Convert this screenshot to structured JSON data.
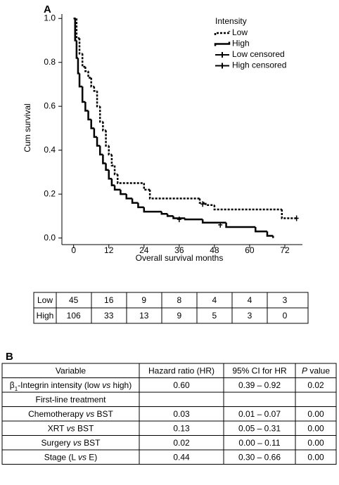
{
  "panel_labels": [
    "A",
    "B"
  ],
  "chart_data": {
    "type": "line",
    "step": true,
    "xlabel": "Overall survival months",
    "ylabel": "Cum survival",
    "xlim": [
      -4,
      78
    ],
    "ylim": [
      -0.03,
      1.02
    ],
    "xticks": [
      0,
      12,
      24,
      36,
      48,
      60,
      72
    ],
    "yticks": [
      {
        "value": 0,
        "label": "0.0"
      },
      {
        "value": 0.2,
        "label": "0.2"
      },
      {
        "value": 0.4,
        "label": "0.4"
      },
      {
        "value": 0.6,
        "label": "0.6"
      },
      {
        "value": 0.8,
        "label": "0.8"
      },
      {
        "value": 1,
        "label": "1.0"
      }
    ],
    "legend_title": "Intensity",
    "legend": "upper right",
    "series": [
      {
        "name": "Low",
        "color": "#000000",
        "line_style": "dotted",
        "x": [
          0,
          1,
          2,
          3,
          4,
          5,
          6,
          7,
          8,
          9,
          10,
          11,
          12,
          13,
          14,
          15,
          24,
          26,
          43,
          45,
          48,
          71,
          76
        ],
        "values": [
          1.0,
          0.91,
          0.84,
          0.78,
          0.76,
          0.73,
          0.69,
          0.67,
          0.6,
          0.53,
          0.49,
          0.42,
          0.38,
          0.33,
          0.29,
          0.25,
          0.22,
          0.18,
          0.16,
          0.15,
          0.13,
          0.09,
          0.09
        ]
      },
      {
        "name": "High",
        "color": "#000000",
        "line_style": "solid",
        "x": [
          0,
          0.5,
          1,
          1.5,
          2,
          3,
          4,
          5,
          6,
          7,
          8,
          9,
          10,
          11,
          12,
          13,
          14,
          16,
          18,
          20,
          22,
          24,
          30,
          32,
          34,
          38,
          44,
          52,
          62,
          66,
          68
        ],
        "values": [
          1.0,
          0.9,
          0.82,
          0.75,
          0.69,
          0.62,
          0.58,
          0.54,
          0.5,
          0.46,
          0.42,
          0.38,
          0.34,
          0.31,
          0.27,
          0.24,
          0.22,
          0.2,
          0.18,
          0.16,
          0.14,
          0.12,
          0.11,
          0.1,
          0.09,
          0.085,
          0.07,
          0.05,
          0.03,
          0.01,
          0.0
        ]
      },
      {
        "name": "Low censored",
        "color": "#000000",
        "marker": "+",
        "x": [
          44,
          76
        ],
        "values": [
          0.155,
          0.09
        ]
      },
      {
        "name": "High censored",
        "color": "#000000",
        "marker": "+",
        "x": [
          36,
          50
        ],
        "values": [
          0.085,
          0.06
        ]
      }
    ]
  },
  "risk_table": {
    "rows": [
      [
        "Low",
        45,
        16,
        9,
        8,
        4,
        4,
        3
      ],
      [
        "High",
        106,
        33,
        13,
        9,
        5,
        3,
        0
      ]
    ]
  },
  "hazard_table": {
    "header": [
      [
        "Variable"
      ],
      [
        "Hazard ratio (HR)"
      ],
      [
        "95% CI for HR"
      ],
      [
        "P",
        " value"
      ]
    ],
    "rows": [
      [
        [
          "β",
          "1",
          "-Integrin intensity (low ",
          "vs",
          " high)"
        ],
        [
          "0.60"
        ],
        [
          "0.39 – 0.92"
        ],
        [
          "0.02"
        ]
      ],
      [
        [
          "First-line treatment"
        ]
      ],
      [
        [
          "Chemotherapy ",
          "vs",
          " BST"
        ],
        [
          "0.03"
        ],
        [
          "0.01 – 0.07"
        ],
        [
          "0.00"
        ]
      ],
      [
        [
          "XRT ",
          "vs",
          " BST"
        ],
        [
          "0.13"
        ],
        [
          "0.05 – 0.31"
        ],
        [
          "0.00"
        ]
      ],
      [
        [
          "Surgery ",
          "vs",
          " BST"
        ],
        [
          "0.02"
        ],
        [
          "0.00 – 0.11"
        ],
        [
          "0.00"
        ]
      ],
      [
        [
          "Stage (L ",
          "vs",
          " E)"
        ],
        [
          "0.44"
        ],
        [
          "0.30 – 0.66"
        ],
        [
          "0.00"
        ]
      ]
    ]
  }
}
